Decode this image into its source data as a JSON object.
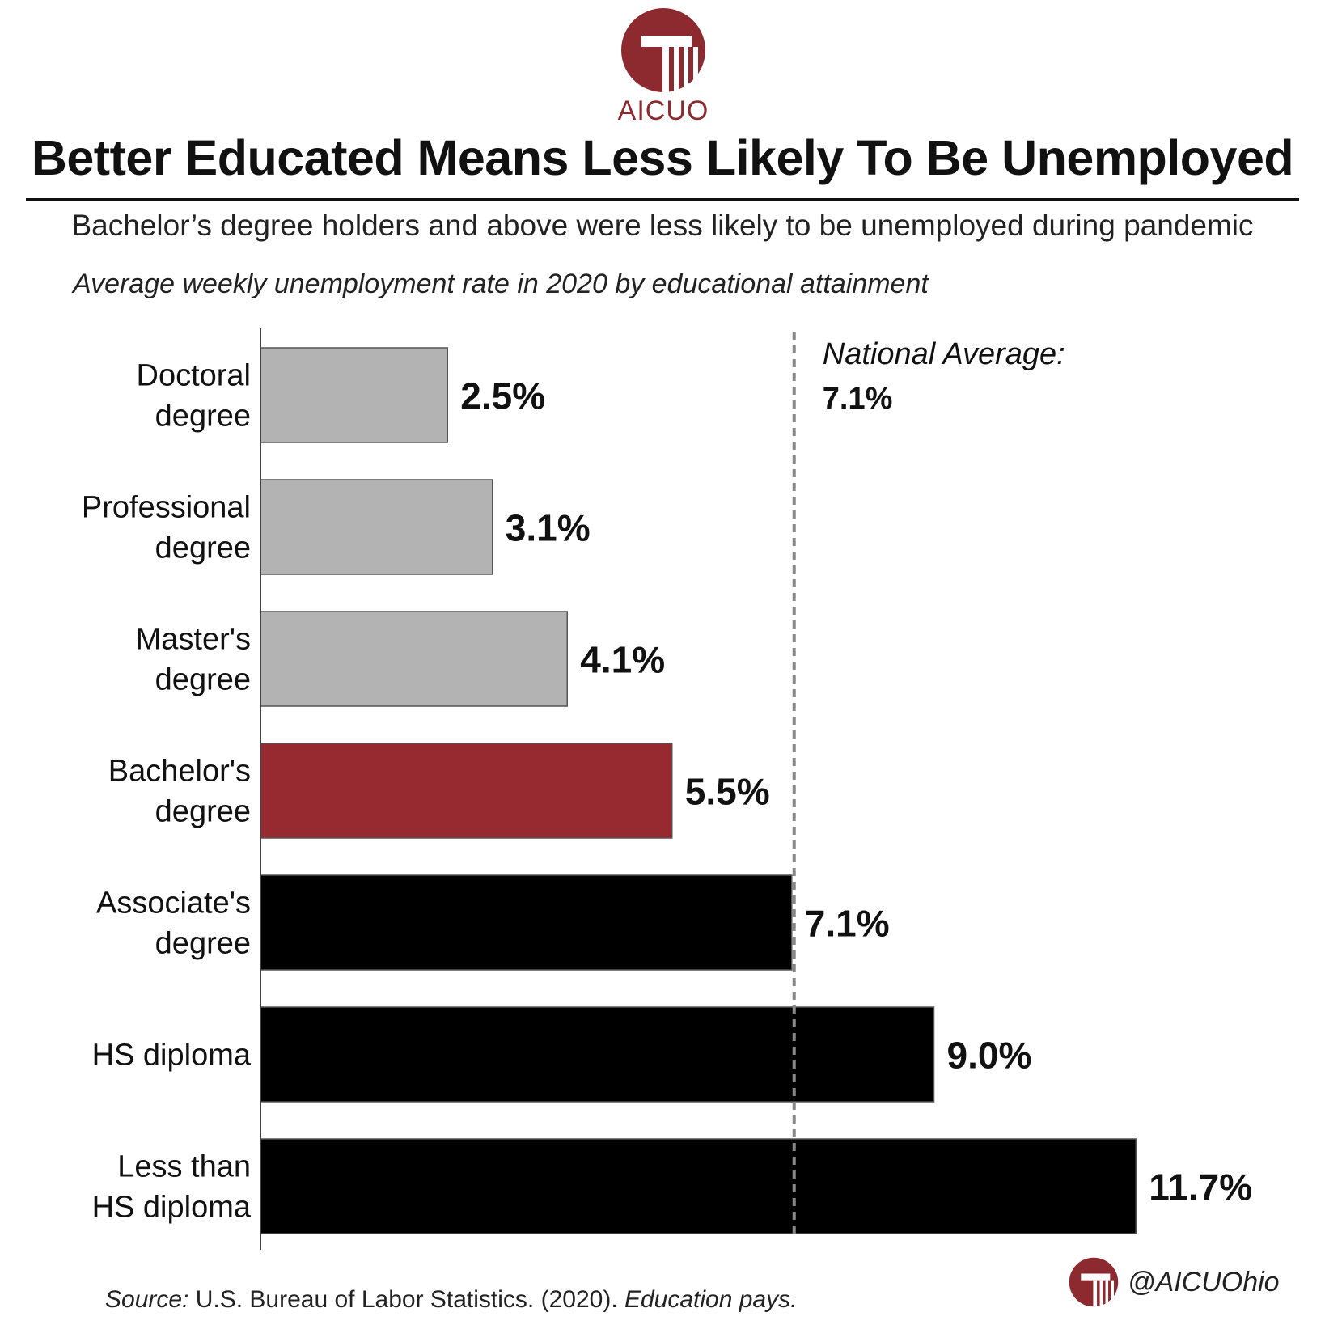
{
  "brand": {
    "logo_text": "AICUO",
    "handle": "@AICUOhio",
    "color": "#8d2a30"
  },
  "header": {
    "title": "Better Educated Means Less Likely To Be Unemployed",
    "subtitle": "Bachelor’s degree holders and above were less likely to be unemployed during pandemic",
    "caption": "Average weekly unemployment rate in 2020 by educational attainment"
  },
  "chart_data": {
    "type": "bar",
    "orientation": "horizontal",
    "categories": [
      [
        "Doctoral",
        "degree"
      ],
      [
        "Professional",
        "degree"
      ],
      [
        "Master's",
        "degree"
      ],
      [
        "Bachelor's",
        "degree"
      ],
      [
        "Associate's",
        "degree"
      ],
      [
        "HS diploma"
      ],
      [
        "Less than",
        "HS diploma"
      ]
    ],
    "values": [
      2.5,
      3.1,
      4.1,
      5.5,
      7.1,
      9.0,
      11.7
    ],
    "value_labels": [
      "2.5%",
      "3.1%",
      "4.1%",
      "5.5%",
      "7.1%",
      "9.0%",
      "11.7%"
    ],
    "colors": [
      "#b3b3b3",
      "#b3b3b3",
      "#b3b3b3",
      "#962a30",
      "#000000",
      "#000000",
      "#000000"
    ],
    "reference_line": {
      "value": 7.1,
      "label": "National Average:",
      "value_label": "7.1%",
      "style": "dashed"
    },
    "xlim": [
      0,
      12
    ]
  },
  "footer": {
    "source_prefix": "Source:",
    "source_text": " U.S. Bureau of Labor Statistics. (2020). ",
    "source_title": "Education pays."
  }
}
